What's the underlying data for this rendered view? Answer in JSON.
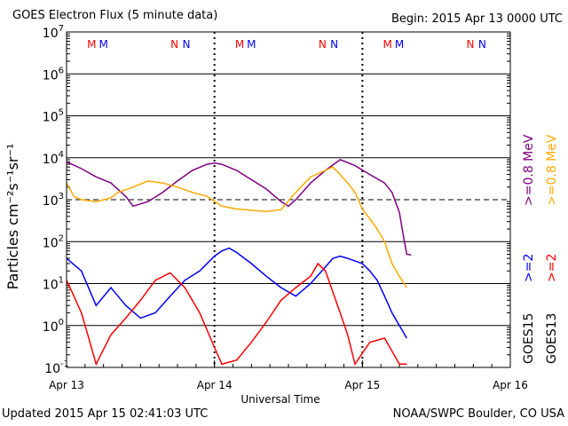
{
  "header": {
    "title": "GOES Electron Flux (5 minute data)",
    "begin": "Begin: 2015 Apr 13 0000 UTC"
  },
  "footer": {
    "updated": "Updated 2015 Apr 15 02:41:03 UTC",
    "credit": "NOAA/SWPC Boulder, CO USA"
  },
  "colors": {
    "goes13_gt2": "#ff0000",
    "goes15_gt2": "#0000ff",
    "goes13_gt08": "#ffaa00",
    "goes15_gt08": "#800080",
    "marker_M_first": "#ff0000",
    "marker_M_second": "#0000ff",
    "marker_N_first": "#ff0000",
    "marker_N_second": "#0000ff"
  },
  "chart_data": {
    "type": "line",
    "xlabel": "Universal Time",
    "ylabel": "Particles cm⁻²s⁻¹sr⁻¹",
    "x_ticks": [
      "Apr 13",
      "Apr 14",
      "Apr 15",
      "Apr 16"
    ],
    "xlim": [
      "2015-04-13 00:00",
      "2015-04-16 00:00"
    ],
    "y_scale": "log",
    "ylim": [
      0.1,
      10000000
    ],
    "y_ticks": [
      {
        "base": "10",
        "exp": "7"
      },
      {
        "base": "10",
        "exp": "6"
      },
      {
        "base": "10",
        "exp": "5"
      },
      {
        "base": "10",
        "exp": "4"
      },
      {
        "base": "10",
        "exp": "3"
      },
      {
        "base": "10",
        "exp": "2"
      },
      {
        "base": "10",
        "exp": "1"
      },
      {
        "base": "10",
        "exp": "0"
      },
      {
        "base": "10",
        "exp": "-1"
      }
    ],
    "threshold_line": 1000,
    "right_legend": {
      "gt08_goes15": ">=0.8  MeV",
      "gt08_goes13": ">=0.8  MeV",
      "gt2_goes15": ">=2",
      "gt2_goes13": ">=2",
      "sat_a": "GOES15",
      "sat_b": "GOES13"
    },
    "local_time_markers": [
      {
        "label": "M",
        "color": "#ff0000",
        "day": 0.17
      },
      {
        "label": "M",
        "color": "#0000ff",
        "day": 0.25
      },
      {
        "label": "N",
        "color": "#ff0000",
        "day": 0.73
      },
      {
        "label": "N",
        "color": "#0000ff",
        "day": 0.81
      },
      {
        "label": "M",
        "color": "#ff0000",
        "day": 1.17
      },
      {
        "label": "M",
        "color": "#0000ff",
        "day": 1.25
      },
      {
        "label": "N",
        "color": "#ff0000",
        "day": 1.73
      },
      {
        "label": "N",
        "color": "#0000ff",
        "day": 1.81
      },
      {
        "label": "M",
        "color": "#ff0000",
        "day": 2.17
      },
      {
        "label": "M",
        "color": "#0000ff",
        "day": 2.25
      },
      {
        "label": "N",
        "color": "#ff0000",
        "day": 2.73
      },
      {
        "label": "N",
        "color": "#0000ff",
        "day": 2.81
      }
    ],
    "series": [
      {
        "name": "GOES15 >=0.8 MeV",
        "color": "#800080",
        "points": [
          [
            0.0,
            8000
          ],
          [
            0.1,
            5500
          ],
          [
            0.2,
            3500
          ],
          [
            0.3,
            2500
          ],
          [
            0.4,
            1200
          ],
          [
            0.45,
            700
          ],
          [
            0.55,
            900
          ],
          [
            0.65,
            1500
          ],
          [
            0.75,
            2800
          ],
          [
            0.85,
            5000
          ],
          [
            0.95,
            7000
          ],
          [
            1.0,
            7500
          ],
          [
            1.05,
            7000
          ],
          [
            1.15,
            5000
          ],
          [
            1.25,
            3000
          ],
          [
            1.35,
            1800
          ],
          [
            1.45,
            900
          ],
          [
            1.5,
            700
          ],
          [
            1.55,
            1000
          ],
          [
            1.65,
            2500
          ],
          [
            1.75,
            5000
          ],
          [
            1.85,
            9000
          ],
          [
            1.95,
            6500
          ],
          [
            2.05,
            4000
          ],
          [
            2.15,
            2500
          ],
          [
            2.2,
            1500
          ],
          [
            2.25,
            500
          ],
          [
            2.28,
            120
          ],
          [
            2.3,
            50
          ],
          [
            2.33,
            48
          ]
        ]
      },
      {
        "name": "GOES13 >=0.8 MeV",
        "color": "#ffaa00",
        "points": [
          [
            0.0,
            2500
          ],
          [
            0.05,
            1200
          ],
          [
            0.1,
            1000
          ],
          [
            0.2,
            900
          ],
          [
            0.3,
            1100
          ],
          [
            0.35,
            1500
          ],
          [
            0.45,
            2000
          ],
          [
            0.55,
            2800
          ],
          [
            0.65,
            2500
          ],
          [
            0.75,
            2000
          ],
          [
            0.85,
            1500
          ],
          [
            0.95,
            1200
          ],
          [
            1.05,
            700
          ],
          [
            1.15,
            600
          ],
          [
            1.25,
            560
          ],
          [
            1.35,
            520
          ],
          [
            1.45,
            580
          ],
          [
            1.55,
            1500
          ],
          [
            1.65,
            3500
          ],
          [
            1.75,
            5000
          ],
          [
            1.8,
            6000
          ],
          [
            1.85,
            4000
          ],
          [
            1.9,
            2500
          ],
          [
            1.95,
            1500
          ],
          [
            2.0,
            600
          ],
          [
            2.05,
            350
          ],
          [
            2.1,
            200
          ],
          [
            2.15,
            100
          ],
          [
            2.2,
            30
          ],
          [
            2.25,
            15
          ],
          [
            2.3,
            8
          ]
        ]
      },
      {
        "name": "GOES15 >=2",
        "color": "#0000ff",
        "points": [
          [
            0.0,
            40
          ],
          [
            0.1,
            20
          ],
          [
            0.2,
            3
          ],
          [
            0.3,
            8
          ],
          [
            0.4,
            3
          ],
          [
            0.5,
            1.5
          ],
          [
            0.6,
            2
          ],
          [
            0.7,
            5
          ],
          [
            0.8,
            12
          ],
          [
            0.9,
            20
          ],
          [
            1.0,
            45
          ],
          [
            1.05,
            60
          ],
          [
            1.1,
            70
          ],
          [
            1.15,
            55
          ],
          [
            1.25,
            30
          ],
          [
            1.35,
            15
          ],
          [
            1.45,
            8
          ],
          [
            1.55,
            5
          ],
          [
            1.65,
            10
          ],
          [
            1.75,
            25
          ],
          [
            1.8,
            40
          ],
          [
            1.85,
            45
          ],
          [
            1.9,
            40
          ],
          [
            2.0,
            30
          ],
          [
            2.05,
            20
          ],
          [
            2.1,
            12
          ],
          [
            2.15,
            5
          ],
          [
            2.2,
            2
          ],
          [
            2.25,
            1
          ],
          [
            2.3,
            0.5
          ]
        ]
      },
      {
        "name": "GOES13 >=2",
        "color": "#ff0000",
        "points": [
          [
            0.0,
            12
          ],
          [
            0.05,
            5
          ],
          [
            0.1,
            2
          ],
          [
            0.15,
            0.5
          ],
          [
            0.2,
            0.12
          ],
          [
            0.3,
            0.6
          ],
          [
            0.4,
            1.5
          ],
          [
            0.5,
            4
          ],
          [
            0.6,
            12
          ],
          [
            0.7,
            18
          ],
          [
            0.8,
            8
          ],
          [
            0.9,
            2
          ],
          [
            1.0,
            0.3
          ],
          [
            1.05,
            0.12
          ],
          [
            1.15,
            0.15
          ],
          [
            1.25,
            0.4
          ],
          [
            1.35,
            1.2
          ],
          [
            1.45,
            4
          ],
          [
            1.55,
            8
          ],
          [
            1.65,
            15
          ],
          [
            1.7,
            30
          ],
          [
            1.75,
            20
          ],
          [
            1.85,
            2
          ],
          [
            1.9,
            0.6
          ],
          [
            1.95,
            0.12
          ],
          [
            2.05,
            0.4
          ],
          [
            2.15,
            0.5
          ],
          [
            2.25,
            0.12
          ],
          [
            2.3,
            0.12
          ]
        ]
      }
    ]
  }
}
